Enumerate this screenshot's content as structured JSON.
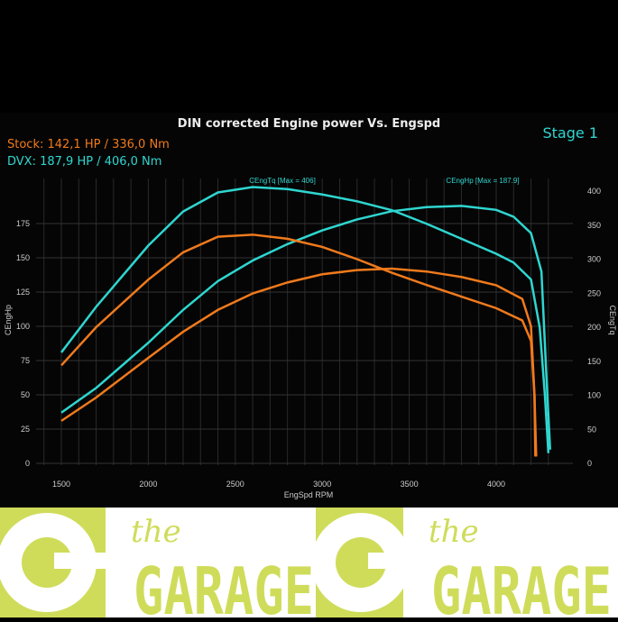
{
  "header": {
    "title": "DIN corrected Engine power Vs. Engspd",
    "stage": "Stage 1",
    "stock": "Stock:  142,1 HP / 336,0 Nm",
    "dvx": "DVX:   187,9 HP / 406,0 Nm"
  },
  "colors": {
    "stock": "#f07a1c",
    "dvx": "#2fd6d0",
    "logo": "#cfdc5a"
  },
  "chart_data": {
    "type": "line",
    "xlabel": "EngSpd RPM",
    "ylabel": "CEngHp",
    "y2label": "CEngTq",
    "xlim": [
      1500,
      4350
    ],
    "ylim": [
      0,
      200
    ],
    "y2lim": [
      0,
      400
    ],
    "xticks": [
      1500,
      2000,
      2500,
      3000,
      3500,
      4000
    ],
    "yticks": [
      0,
      25,
      50,
      75,
      100,
      125,
      150,
      175
    ],
    "y2ticks": [
      0,
      50,
      100,
      150,
      200,
      250,
      300,
      350,
      400
    ],
    "grid": true,
    "annotations": [
      "CEngTq [Max = 406]",
      "CEngHp [Max = 187.9]"
    ],
    "series": [
      {
        "axis": "y2",
        "color": "#2fd6d0",
        "x": [
          1500,
          1700,
          2000,
          2200,
          2400,
          2600,
          2800,
          3000,
          3200,
          3400,
          3600,
          3800,
          4000,
          4100,
          4200,
          4250,
          4280,
          4300
        ],
        "values": [
          163,
          230,
          320,
          370,
          398,
          406,
          403,
          395,
          385,
          372,
          352,
          330,
          308,
          295,
          270,
          200,
          100,
          15
        ]
      },
      {
        "axis": "y",
        "color": "#2fd6d0",
        "x": [
          1500,
          1700,
          2000,
          2200,
          2400,
          2600,
          2800,
          3000,
          3200,
          3400,
          3600,
          3800,
          4000,
          4100,
          4200,
          4260,
          4290,
          4310
        ],
        "values": [
          37,
          55,
          88,
          112,
          133,
          148,
          160,
          170,
          178,
          184,
          187,
          187.9,
          185,
          180,
          168,
          140,
          60,
          10
        ]
      },
      {
        "axis": "y2",
        "color": "#f07a1c",
        "x": [
          1500,
          1700,
          2000,
          2200,
          2400,
          2600,
          2800,
          3000,
          3200,
          3400,
          3600,
          3800,
          4000,
          4150,
          4200,
          4220,
          4230
        ],
        "values": [
          144,
          200,
          270,
          310,
          333,
          336,
          330,
          318,
          300,
          280,
          262,
          245,
          228,
          210,
          180,
          100,
          10
        ]
      },
      {
        "axis": "y",
        "color": "#f07a1c",
        "x": [
          1500,
          1700,
          2000,
          2200,
          2400,
          2600,
          2800,
          3000,
          3200,
          3400,
          3600,
          3800,
          4000,
          4150,
          4200,
          4220,
          4225
        ],
        "values": [
          31,
          48,
          77,
          96,
          112,
          124,
          132,
          138,
          141,
          142.1,
          140,
          136,
          130,
          120,
          100,
          50,
          5
        ]
      }
    ]
  }
}
